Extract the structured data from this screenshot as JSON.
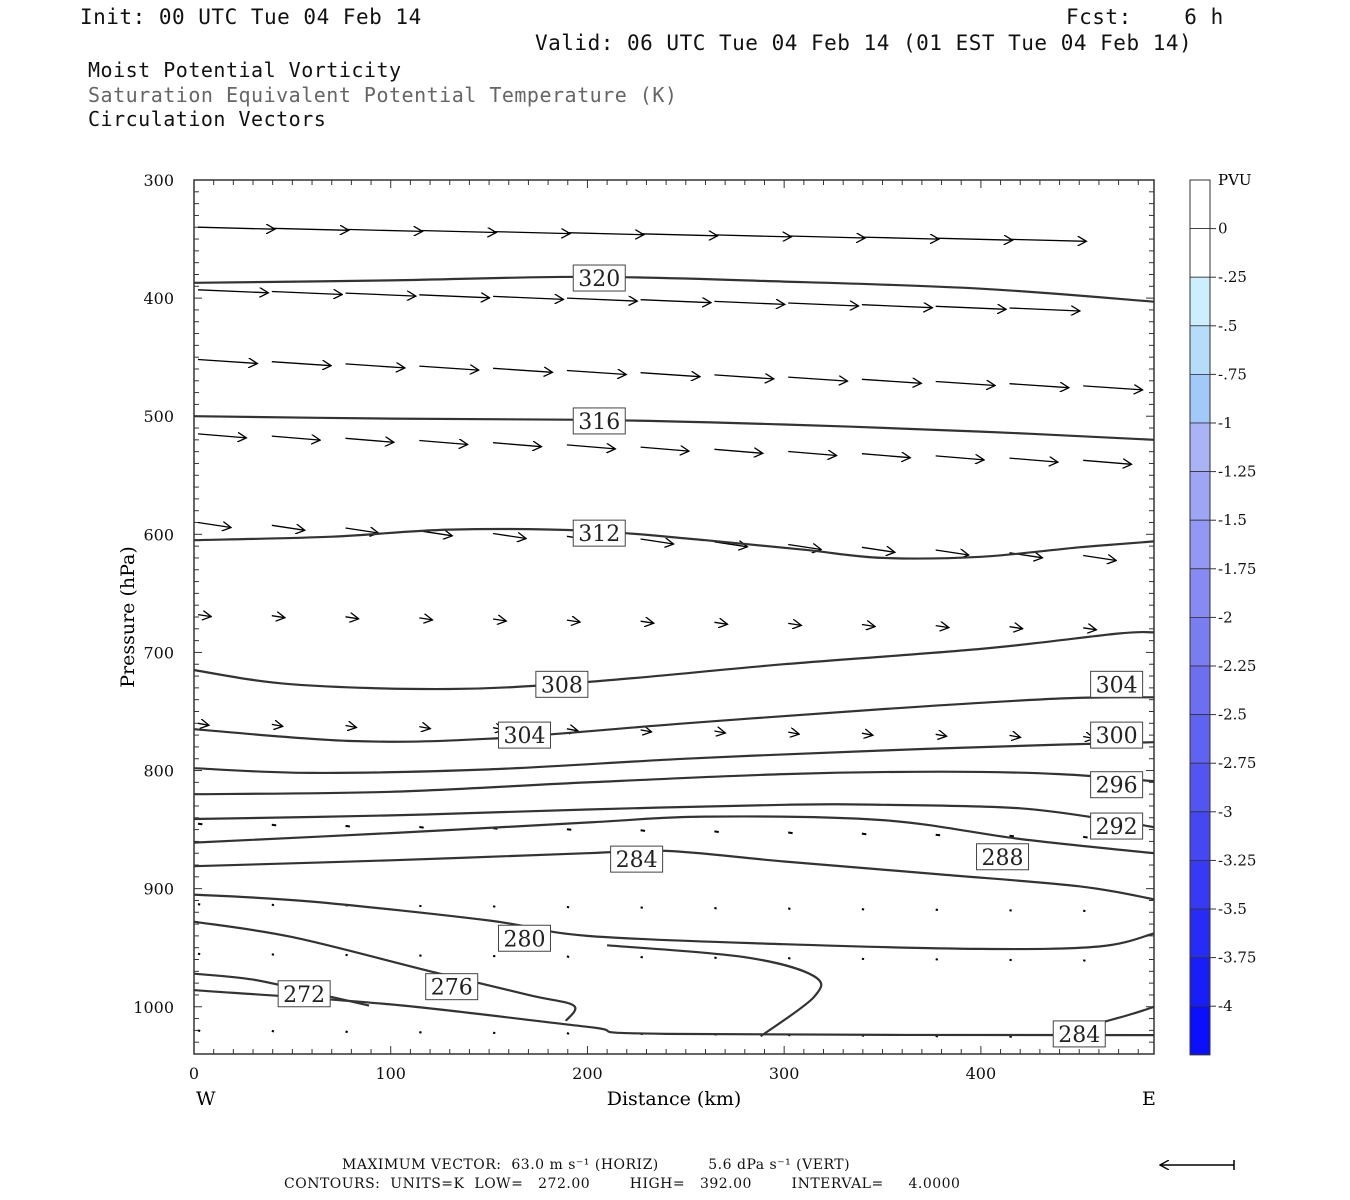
{
  "header": {
    "init": "Init: 00 UTC Tue 04 Feb 14",
    "fcst": "Fcst:    6 h",
    "valid": "Valid: 06 UTC Tue 04 Feb 14 (01 EST Tue 04 Feb 14)",
    "field1": "Moist Potential Vorticity",
    "field2": "Saturation Equivalent Potential Temperature (K)",
    "field3": "Circulation Vectors"
  },
  "footer": {
    "max_vector": "MAXIMUM VECTOR:  63.0 m s⁻¹ (HORIZ)          5.6 dPa s⁻¹ (VERT)",
    "contours": "CONTOURS:  UNITS=K  LOW=   272.00        HIGH=   392.00        INTERVAL=     4.0000"
  },
  "colors": {
    "line": "#333333",
    "vector": "#000000",
    "bar_white": "#ffffff",
    "bar_blues": [
      "#cdeefc",
      "#b5dcfb",
      "#a3c9fa",
      "#a9b3f5",
      "#9da5f4",
      "#9298f3",
      "#868af2",
      "#7a7df2",
      "#6d6ff1",
      "#6062f1",
      "#5355f2",
      "#4547f3",
      "#3739f4",
      "#282bf6",
      "#191df8",
      "#0a10fb"
    ]
  },
  "chart_data": {
    "type": "contour",
    "xlabel": "Distance (km)",
    "ylabel": "Pressure (hPa)",
    "xlim": [
      0,
      488
    ],
    "ylim": [
      1040,
      300
    ],
    "x_ticks": [
      0,
      100,
      200,
      300,
      400
    ],
    "y_ticks": [
      300,
      400,
      500,
      600,
      700,
      800,
      900,
      1000
    ],
    "x_end_left": "W",
    "x_end_right": "E",
    "colorbar": {
      "unit": "PVU",
      "labels": [
        "0",
        "-.25",
        "-.5",
        "-.75",
        "-1",
        "-1.25",
        "-1.5",
        "-1.75",
        "-2",
        "-2.25",
        "-2.5",
        "-2.75",
        "-3",
        "-3.25",
        "-3.5",
        "-3.75",
        "-4"
      ]
    },
    "contours": [
      {
        "label": "320",
        "points": [
          [
            0,
            387
          ],
          [
            100,
            385
          ],
          [
            200,
            382
          ],
          [
            300,
            386
          ],
          [
            400,
            392
          ],
          [
            488,
            403
          ]
        ]
      },
      {
        "label": "316",
        "points": [
          [
            0,
            500
          ],
          [
            100,
            502
          ],
          [
            200,
            503
          ],
          [
            300,
            507
          ],
          [
            400,
            513
          ],
          [
            488,
            520
          ]
        ]
      },
      {
        "label": "312",
        "points": [
          [
            0,
            605
          ],
          [
            70,
            602
          ],
          [
            130,
            596
          ],
          [
            200,
            597
          ],
          [
            260,
            605
          ],
          [
            310,
            613
          ],
          [
            350,
            620
          ],
          [
            400,
            619
          ],
          [
            450,
            611
          ],
          [
            488,
            606
          ]
        ]
      },
      {
        "label": "308",
        "points": [
          [
            0,
            715
          ],
          [
            50,
            727
          ],
          [
            130,
            731
          ],
          [
            200,
            725
          ],
          [
            300,
            710
          ],
          [
            400,
            697
          ],
          [
            470,
            684
          ],
          [
            488,
            683
          ]
        ]
      },
      {
        "label": "304",
        "points": [
          [
            0,
            765
          ],
          [
            80,
            775
          ],
          [
            150,
            773
          ],
          [
            250,
            760
          ],
          [
            350,
            748
          ],
          [
            440,
            739
          ],
          [
            488,
            738
          ]
        ]
      },
      {
        "label": "300",
        "points": [
          [
            0,
            798
          ],
          [
            60,
            802
          ],
          [
            150,
            799
          ],
          [
            250,
            790
          ],
          [
            350,
            783
          ],
          [
            440,
            778
          ],
          [
            488,
            776
          ]
        ]
      },
      {
        "label": "296",
        "points": [
          [
            0,
            820
          ],
          [
            100,
            818
          ],
          [
            200,
            810
          ],
          [
            300,
            803
          ],
          [
            380,
            801
          ],
          [
            440,
            803
          ],
          [
            488,
            809
          ]
        ]
      },
      {
        "label": "292",
        "points": [
          [
            0,
            841
          ],
          [
            100,
            838
          ],
          [
            200,
            833
          ],
          [
            300,
            829
          ],
          [
            350,
            829
          ],
          [
            420,
            832
          ],
          [
            470,
            843
          ],
          [
            488,
            848
          ]
        ]
      },
      {
        "label": "288",
        "points": [
          [
            0,
            861
          ],
          [
            100,
            853
          ],
          [
            200,
            844
          ],
          [
            260,
            839
          ],
          [
            350,
            842
          ],
          [
            420,
            858
          ],
          [
            488,
            870
          ]
        ]
      },
      {
        "label": "284",
        "points": [
          [
            0,
            881
          ],
          [
            100,
            876
          ],
          [
            200,
            870
          ],
          [
            240,
            868
          ],
          [
            300,
            877
          ],
          [
            380,
            888
          ],
          [
            450,
            898
          ],
          [
            488,
            909
          ]
        ]
      },
      {
        "label": "280",
        "points": [
          [
            0,
            905
          ],
          [
            60,
            911
          ],
          [
            150,
            927
          ],
          [
            200,
            940
          ],
          [
            300,
            947
          ],
          [
            400,
            951
          ],
          [
            460,
            949
          ],
          [
            488,
            938
          ]
        ]
      },
      {
        "label": "276",
        "points": [
          [
            0,
            928
          ],
          [
            50,
            941
          ],
          [
            120,
            970
          ],
          [
            170,
            990
          ],
          [
            193,
            999
          ],
          [
            189,
            1012
          ]
        ]
      },
      {
        "label": "272",
        "points": [
          [
            0,
            972
          ],
          [
            30,
            977
          ],
          [
            60,
            988
          ],
          [
            89,
            999
          ]
        ]
      },
      {
        "label": "272b",
        "points": [
          [
            0,
            986
          ],
          [
            100,
            998
          ],
          [
            200,
            1017
          ],
          [
            240,
            1023
          ],
          [
            488,
            1024
          ]
        ]
      },
      {
        "label": "284b",
        "points": [
          [
            288,
            1025
          ],
          [
            315,
            992
          ],
          [
            315,
            974
          ],
          [
            280,
            958
          ],
          [
            210,
            948
          ]
        ]
      },
      {
        "label": "284c",
        "points": [
          [
            440,
            1023
          ],
          [
            475,
            1007
          ],
          [
            488,
            1000
          ]
        ]
      }
    ],
    "contour_labels": [
      {
        "text": "320",
        "x": 206,
        "p": 383
      },
      {
        "text": "316",
        "x": 206,
        "p": 504
      },
      {
        "text": "312",
        "x": 206,
        "p": 599
      },
      {
        "text": "308",
        "x": 187,
        "p": 727
      },
      {
        "text": "304",
        "x": 168,
        "p": 770
      },
      {
        "text": "304",
        "x": 469,
        "p": 727
      },
      {
        "text": "300",
        "x": 469,
        "p": 770
      },
      {
        "text": "296",
        "x": 469,
        "p": 812
      },
      {
        "text": "292",
        "x": 469,
        "p": 847
      },
      {
        "text": "288",
        "x": 411,
        "p": 873
      },
      {
        "text": "284",
        "x": 225,
        "p": 875
      },
      {
        "text": "280",
        "x": 168,
        "p": 942
      },
      {
        "text": "276",
        "x": 131,
        "p": 983
      },
      {
        "text": "272",
        "x": 56,
        "p": 989
      },
      {
        "text": "284",
        "x": 450,
        "p": 1023
      }
    ],
    "vector_rows": [
      {
        "p": 340,
        "u": 35,
        "tilt": 2
      },
      {
        "p": 393,
        "u": 32,
        "tilt": 3
      },
      {
        "p": 452,
        "u": 27,
        "tilt": 4
      },
      {
        "p": 515,
        "u": 22,
        "tilt": 4
      },
      {
        "p": 590,
        "u": 15,
        "tilt": 5
      },
      {
        "p": 668,
        "u": 6,
        "tilt": 2
      },
      {
        "p": 760,
        "u": 5,
        "tilt": 2
      },
      {
        "p": 845,
        "u": 2,
        "tilt": 2
      },
      {
        "p": 913,
        "u": 1,
        "tilt": 1
      },
      {
        "p": 955,
        "u": 1,
        "tilt": 1
      },
      {
        "p": 1020,
        "u": 1,
        "tilt": 1
      }
    ]
  }
}
